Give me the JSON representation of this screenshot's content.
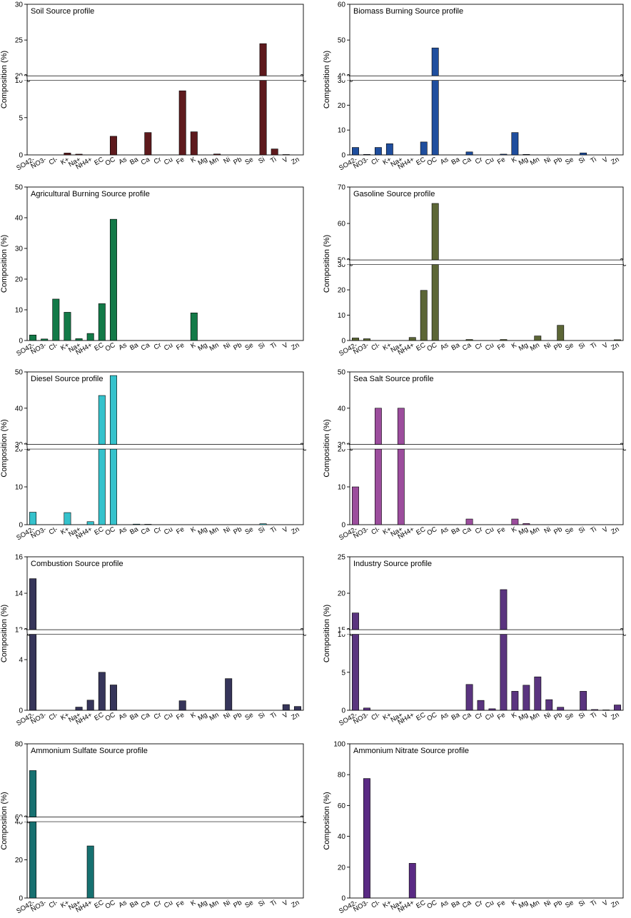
{
  "categories": [
    "SO42-",
    "NO3-",
    "Cl-",
    "K+",
    "Na+",
    "NH4+",
    "EC",
    "OC",
    "As",
    "Ba",
    "Ca",
    "Cr",
    "Cu",
    "Fe",
    "K",
    "Mg",
    "Mn",
    "Ni",
    "Pb",
    "Se",
    "Si",
    "Ti",
    "V",
    "Zn"
  ],
  "chart_data": [
    {
      "type": "bar",
      "title": "Soil Source profile",
      "ylabel": "Composition (%)",
      "color": "#5e1a1d",
      "axis_break": {
        "lower": [
          0,
          10
        ],
        "upper": [
          20,
          30
        ]
      },
      "lower_ticks": [
        0,
        5,
        10
      ],
      "upper_ticks": [
        20,
        25,
        30
      ],
      "categories": [
        "SO42-",
        "NO3-",
        "Cl-",
        "K+",
        "Na+",
        "NH4+",
        "EC",
        "OC",
        "As",
        "Ba",
        "Ca",
        "Cr",
        "Cu",
        "Fe",
        "K",
        "Mg",
        "Mn",
        "Ni",
        "Pb",
        "Se",
        "Si",
        "Ti",
        "V",
        "Zn"
      ],
      "values": [
        0,
        0,
        0,
        0.25,
        0.1,
        0,
        0,
        2.5,
        0,
        0,
        3.0,
        0,
        0,
        8.6,
        3.1,
        0,
        0.12,
        0,
        0,
        0,
        24.5,
        0.8,
        0.05,
        0
      ]
    },
    {
      "type": "bar",
      "title": "Biomass Burning Source profile",
      "ylabel": "Composition (%)",
      "color": "#1f4e9e",
      "axis_break": {
        "lower": [
          0,
          30
        ],
        "upper": [
          40,
          60
        ]
      },
      "lower_ticks": [
        0,
        10,
        20,
        30
      ],
      "upper_ticks": [
        40,
        50,
        60
      ],
      "categories": [
        "SO42-",
        "NO3-",
        "Cl-",
        "K+",
        "Na+",
        "NH4+",
        "EC",
        "OC",
        "As",
        "Ba",
        "Ca",
        "Cr",
        "Cu",
        "Fe",
        "K",
        "Mg",
        "Mn",
        "Ni",
        "Pb",
        "Se",
        "Si",
        "Ti",
        "V",
        "Zn"
      ],
      "values": [
        3.0,
        0.2,
        3.0,
        4.5,
        0,
        0,
        5.2,
        47.8,
        0,
        0,
        1.2,
        0,
        0,
        0.3,
        9.0,
        0.2,
        0,
        0,
        0,
        0,
        0.8,
        0,
        0,
        0
      ]
    },
    {
      "type": "bar",
      "title": "Agricultural Burning Source profile",
      "ylabel": "Composition (%)",
      "color": "#137a48",
      "ylim": [
        0,
        50
      ],
      "ticks": [
        0,
        10,
        20,
        30,
        40,
        50
      ],
      "categories": [
        "SO42-",
        "NO3-",
        "Cl-",
        "K+",
        "Na+",
        "NH4+",
        "EC",
        "OC",
        "As",
        "Ba",
        "Ca",
        "Cr",
        "Cu",
        "Fe",
        "K",
        "Mg",
        "Mn",
        "Ni",
        "Pb",
        "Se",
        "Si",
        "Ti",
        "V",
        "Zn"
      ],
      "values": [
        1.8,
        0.5,
        13.5,
        9.2,
        0.6,
        2.3,
        12.0,
        39.5,
        0,
        0,
        0,
        0,
        0,
        0,
        9.0,
        0,
        0,
        0,
        0,
        0,
        0,
        0,
        0,
        0
      ]
    },
    {
      "type": "bar",
      "title": "Gasoline Source profile",
      "ylabel": "Composition (%)",
      "color": "#5c6636",
      "axis_break": {
        "lower": [
          0,
          30
        ],
        "upper": [
          50,
          70
        ]
      },
      "lower_ticks": [
        0,
        10,
        20,
        30
      ],
      "upper_ticks": [
        50,
        60,
        70
      ],
      "categories": [
        "SO42-",
        "NO3-",
        "Cl-",
        "K+",
        "Na+",
        "NH4+",
        "EC",
        "OC",
        "As",
        "Ba",
        "Ca",
        "Cr",
        "Cu",
        "Fe",
        "K",
        "Mg",
        "Mn",
        "Ni",
        "Pb",
        "Se",
        "Si",
        "Ti",
        "V",
        "Zn"
      ],
      "values": [
        1.0,
        0.7,
        0,
        0,
        0,
        1.2,
        19.8,
        65.5,
        0,
        0,
        0.4,
        0,
        0,
        0.4,
        0,
        0,
        1.8,
        0,
        6.0,
        0,
        0,
        0,
        0,
        0.3
      ]
    },
    {
      "type": "bar",
      "title": "Diesel Source profile",
      "ylabel": "Composition (%)",
      "color": "#35c2cc",
      "axis_break": {
        "lower": [
          0,
          20
        ],
        "upper": [
          30,
          50
        ]
      },
      "lower_ticks": [
        0,
        10,
        20
      ],
      "upper_ticks": [
        30,
        40,
        50
      ],
      "categories": [
        "SO42-",
        "NO3-",
        "Cl-",
        "K+",
        "Na+",
        "NH4+",
        "EC",
        "OC",
        "As",
        "Ba",
        "Ca",
        "Cr",
        "Cu",
        "Fe",
        "K",
        "Mg",
        "Mn",
        "Ni",
        "Pb",
        "Se",
        "Si",
        "Ti",
        "V",
        "Zn"
      ],
      "values": [
        3.3,
        0,
        0,
        3.2,
        0,
        0.8,
        43.5,
        49.0,
        0,
        0.15,
        0.1,
        0,
        0,
        0,
        0,
        0,
        0,
        0,
        0,
        0,
        0.25,
        0,
        0,
        0
      ]
    },
    {
      "type": "bar",
      "title": "Sea Salt Source profile",
      "ylabel": "Composition (%)",
      "color": "#9c4d9d",
      "axis_break": {
        "lower": [
          0,
          20
        ],
        "upper": [
          30,
          50
        ]
      },
      "lower_ticks": [
        0,
        10,
        20
      ],
      "upper_ticks": [
        30,
        40,
        50
      ],
      "categories": [
        "SO42-",
        "NO3-",
        "Cl-",
        "K+",
        "Na+",
        "NH4+",
        "EC",
        "OC",
        "As",
        "Ba",
        "Ca",
        "Cr",
        "Cu",
        "Fe",
        "K",
        "Mg",
        "Mn",
        "Ni",
        "Pb",
        "Se",
        "Si",
        "Ti",
        "V",
        "Zn"
      ],
      "values": [
        10.0,
        0,
        40.0,
        0,
        40.0,
        0,
        0,
        0,
        0,
        0,
        1.5,
        0,
        0,
        0,
        1.5,
        0.3,
        0,
        0,
        0,
        0,
        0,
        0,
        0,
        0
      ]
    },
    {
      "type": "bar",
      "title": "Combustion Source profile",
      "ylabel": "Composition (%)",
      "color": "#36355a",
      "axis_break": {
        "lower": [
          0,
          6
        ],
        "upper": [
          12,
          16
        ]
      },
      "lower_ticks": [
        0,
        4
      ],
      "upper_ticks": [
        12,
        14,
        16
      ],
      "categories": [
        "SO42-",
        "NO3-",
        "Cl-",
        "K+",
        "Na+",
        "NH4+",
        "EC",
        "OC",
        "As",
        "Ba",
        "Ca",
        "Cr",
        "Cu",
        "Fe",
        "K",
        "Mg",
        "Mn",
        "Ni",
        "Pb",
        "Se",
        "Si",
        "Ti",
        "V",
        "Zn"
      ],
      "values": [
        14.8,
        0,
        0,
        0,
        0.25,
        0.8,
        3.0,
        2.0,
        0,
        0,
        0,
        0,
        0,
        0.75,
        0,
        0,
        0,
        2.5,
        0,
        0,
        0,
        0,
        0.45,
        0.3
      ]
    },
    {
      "type": "bar",
      "title": "Industry Source profile",
      "ylabel": "Composition (%)",
      "color": "#5a347f",
      "axis_break": {
        "lower": [
          0,
          10
        ],
        "upper": [
          15,
          25
        ]
      },
      "lower_ticks": [
        0,
        5,
        10
      ],
      "upper_ticks": [
        15,
        20,
        25
      ],
      "categories": [
        "SO42-",
        "NO3-",
        "Cl-",
        "K+",
        "Na+",
        "NH4+",
        "EC",
        "OC",
        "As",
        "Ba",
        "Ca",
        "Cr",
        "Cu",
        "Fe",
        "K",
        "Mg",
        "Mn",
        "Ni",
        "Pb",
        "Se",
        "Si",
        "Ti",
        "V",
        "Zn"
      ],
      "values": [
        17.3,
        0.3,
        0,
        0,
        0,
        0,
        0,
        0,
        0,
        0,
        3.4,
        1.3,
        0.2,
        20.5,
        2.5,
        3.3,
        4.4,
        1.4,
        0.4,
        0,
        2.5,
        0.1,
        0.05,
        0.7
      ]
    },
    {
      "type": "bar",
      "title": "Ammonium Sulfate Source profile",
      "ylabel": "Composition (%)",
      "color": "#167070",
      "axis_break": {
        "lower": [
          0,
          40
        ],
        "upper": [
          60,
          80
        ]
      },
      "lower_ticks": [
        0,
        20,
        40
      ],
      "upper_ticks": [
        60,
        80
      ],
      "categories": [
        "SO42-",
        "NO3-",
        "Cl-",
        "K+",
        "Na+",
        "NH4+",
        "EC",
        "OC",
        "As",
        "Ba",
        "Ca",
        "Cr",
        "Cu",
        "Fe",
        "K",
        "Mg",
        "Mn",
        "Ni",
        "Pb",
        "Se",
        "Si",
        "Ti",
        "V",
        "Zn"
      ],
      "values": [
        72.7,
        0,
        0,
        0,
        0,
        27.3,
        0,
        0,
        0,
        0,
        0,
        0,
        0,
        0,
        0,
        0,
        0,
        0,
        0,
        0,
        0,
        0,
        0,
        0
      ]
    },
    {
      "type": "bar",
      "title": "Ammonium Nitrate Source profile",
      "ylabel": "Composition (%)",
      "color": "#5a2a84",
      "ylim": [
        0,
        100
      ],
      "ticks": [
        0,
        20,
        40,
        60,
        80,
        100
      ],
      "categories": [
        "SO42-",
        "NO3-",
        "Cl-",
        "K+",
        "Na+",
        "NH4+",
        "EC",
        "OC",
        "As",
        "Ba",
        "Ca",
        "Cr",
        "Cu",
        "Fe",
        "K",
        "Mg",
        "Mn",
        "Ni",
        "Pb",
        "Se",
        "Si",
        "Ti",
        "V",
        "Zn"
      ],
      "values": [
        0,
        77.5,
        0,
        0,
        0,
        22.5,
        0,
        0,
        0,
        0,
        0,
        0,
        0,
        0,
        0,
        0,
        0,
        0,
        0,
        0,
        0,
        0,
        0,
        0
      ]
    }
  ]
}
